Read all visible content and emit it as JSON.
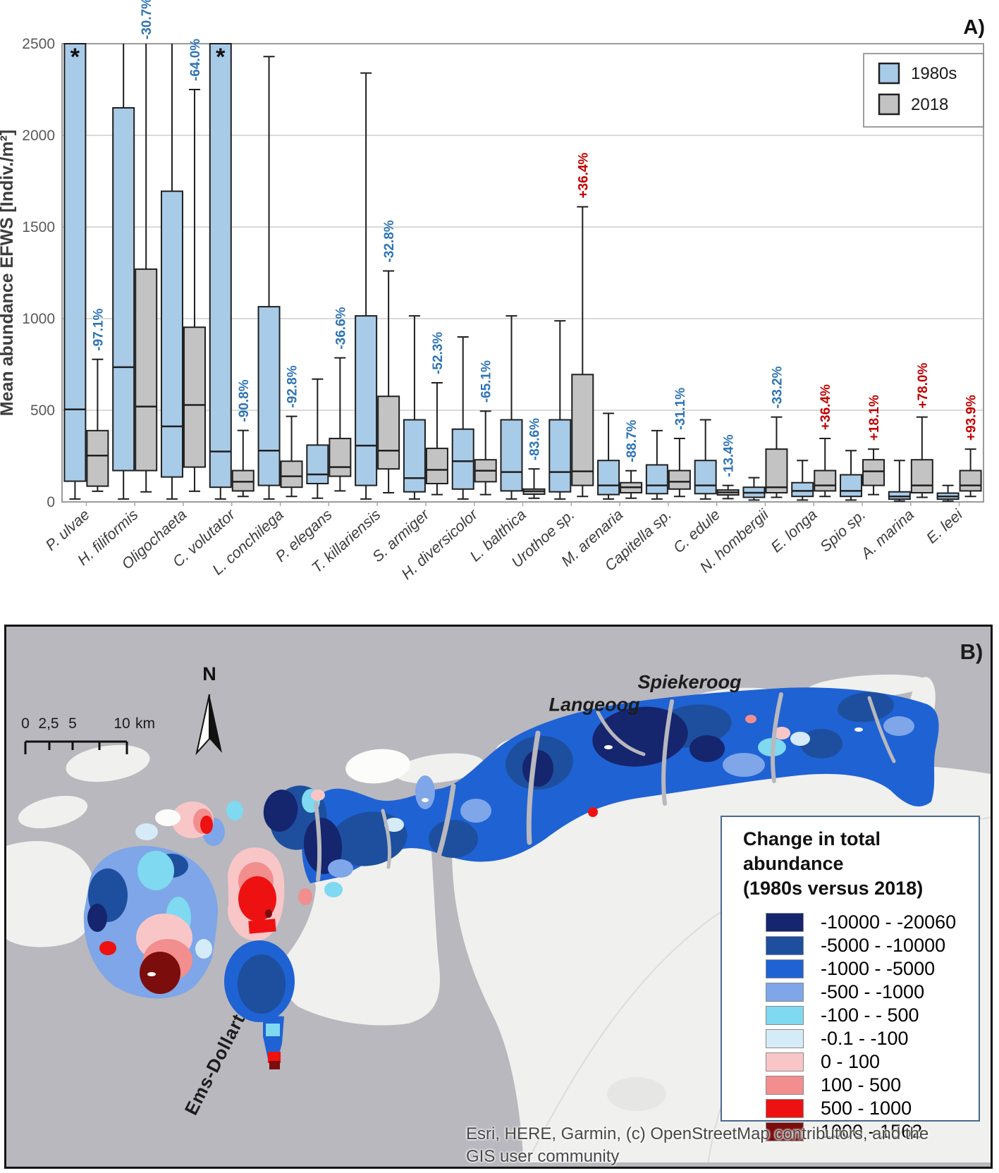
{
  "figure": {
    "panel_a": {
      "label": "A)",
      "y_axis": {
        "title": "Mean abundance EFWS [Indiv./m²]",
        "ticks": [
          "0",
          "500",
          "1000",
          "1500",
          "2000",
          "2500"
        ]
      },
      "legend": {
        "items": [
          {
            "label": "1980s",
            "color": "#a8cbe8"
          },
          {
            "label": "2018",
            "color": "#c3c3c3"
          }
        ]
      },
      "colors": {
        "negative": "#2e74b5",
        "positive": "#c00000",
        "box_stroke": "#1f1f1f",
        "grid": "#dadada",
        "axis_text": "#595959",
        "plot_border": "#9b9b9b"
      },
      "chart_data": {
        "type": "boxplot",
        "ylabel": "Mean abundance EFWS [Indiv./m²]",
        "ylim": [
          0,
          2500
        ],
        "legend_position": "top-right",
        "grid": true,
        "series_names": [
          "1980s",
          "2018"
        ],
        "note": "Boxes give [whisker_low, q1, median, q3, whisker_high] in Indiv./m2; 2500 means clipped at axis top; star marks boxes exceeding axis",
        "species": [
          {
            "name": "P. ulvae",
            "change": "-97.1%",
            "direction": "down",
            "s1980": [
              16,
              113,
              505,
              2500,
              2500
            ],
            "star_1980": true,
            "s2018": [
              58,
              86,
              253,
              389,
              778
            ]
          },
          {
            "name": "H. filiformis",
            "change": "-30.7%",
            "direction": "down",
            "s1980": [
              16,
              171,
              735,
              2150,
              2500
            ],
            "star_1980": false,
            "s2018": [
              55,
              171,
              520,
              1270,
              2500
            ]
          },
          {
            "name": "Oligochaeta",
            "change": "-64.0%",
            "direction": "down",
            "s1980": [
              16,
              136,
              412,
              1695,
              2500
            ],
            "star_1980": false,
            "s2018": [
              58,
              190,
              529,
              953,
              2250
            ]
          },
          {
            "name": "C. volutator",
            "change": "-90.8%",
            "direction": "down",
            "s1980": [
              16,
              80,
              275,
              2500,
              2500
            ],
            "star_1980": true,
            "s2018": [
              30,
              60,
              110,
              171,
              390
            ]
          },
          {
            "name": "L. conchilega",
            "change": "-92.8%",
            "direction": "down",
            "s1980": [
              16,
              90,
              280,
              1065,
              2430
            ],
            "star_1980": false,
            "s2018": [
              30,
              80,
              140,
              222,
              467
            ]
          },
          {
            "name": "P. elegans",
            "change": "-36.6%",
            "direction": "down",
            "s1980": [
              20,
              100,
              150,
              310,
              670
            ],
            "star_1980": false,
            "s2018": [
              60,
              140,
              190,
              346,
              786
            ]
          },
          {
            "name": "T. killariensis",
            "change": "-32.8%",
            "direction": "down",
            "s1980": [
              16,
              90,
              307,
              1015,
              2340
            ],
            "star_1980": false,
            "s2018": [
              50,
              180,
              280,
              576,
              1260
            ]
          },
          {
            "name": "S. armiger",
            "change": "-52.3%",
            "direction": "down",
            "s1980": [
              16,
              55,
              130,
              448,
              1015
            ],
            "star_1980": false,
            "s2018": [
              40,
              100,
              175,
              292,
              650
            ]
          },
          {
            "name": "H. diversicolor",
            "change": "-65.1%",
            "direction": "down",
            "s1980": [
              16,
              70,
              222,
              397,
              900
            ],
            "star_1980": false,
            "s2018": [
              40,
              110,
              170,
              230,
              495
            ]
          },
          {
            "name": "L. balthica",
            "change": "-83.6%",
            "direction": "down",
            "s1980": [
              16,
              60,
              163,
              448,
              1015
            ],
            "star_1980": false,
            "s2018": [
              20,
              42,
              58,
              70,
              180
            ]
          },
          {
            "name": "Urothoe sp.",
            "change": "+36.4%",
            "direction": "up",
            "s1980": [
              16,
              55,
              163,
              448,
              988
            ],
            "star_1980": false,
            "s2018": [
              30,
              90,
              167,
              695,
              1610
            ]
          },
          {
            "name": "M. arenaria",
            "change": "-88.7%",
            "direction": "down",
            "s1980": [
              16,
              40,
              90,
              226,
              483
            ],
            "star_1980": false,
            "s2018": [
              20,
              50,
              80,
              105,
              170
            ]
          },
          {
            "name": "Capitella sp.",
            "change": "-31.1%",
            "direction": "down",
            "s1980": [
              16,
              45,
              90,
              202,
              389
            ],
            "star_1980": false,
            "s2018": [
              30,
              70,
              110,
              171,
              346
            ]
          },
          {
            "name": "C. edule",
            "change": "-13.4%",
            "direction": "down",
            "s1980": [
              16,
              45,
              90,
              226,
              448
            ],
            "star_1980": false,
            "s2018": [
              18,
              38,
              52,
              65,
              90
            ]
          },
          {
            "name": "N. hombergii",
            "change": "-33.2%",
            "direction": "down",
            "s1980": [
              10,
              25,
              50,
              80,
              132
            ],
            "star_1980": false,
            "s2018": [
              25,
              50,
              80,
              288,
              463
            ]
          },
          {
            "name": "E. longa",
            "change": "+36.4%",
            "direction": "up",
            "s1980": [
              10,
              30,
              60,
              105,
              226
            ],
            "star_1980": false,
            "s2018": [
              30,
              60,
              90,
              171,
              346
            ]
          },
          {
            "name": "Spio sp.",
            "change": "+18.1%",
            "direction": "up",
            "s1980": [
              10,
              30,
              60,
              148,
              280
            ],
            "star_1980": false,
            "s2018": [
              40,
              90,
              167,
              230,
              288
            ]
          },
          {
            "name": "A. marina",
            "change": "+78.0%",
            "direction": "up",
            "s1980": [
              5,
              15,
              30,
              55,
              226
            ],
            "star_1980": false,
            "s2018": [
              25,
              50,
              90,
              230,
              463
            ]
          },
          {
            "name": "E. leei",
            "change": "+93.9%",
            "direction": "up",
            "s1980": [
              5,
              15,
              30,
              48,
              90
            ],
            "star_1980": false,
            "s2018": [
              30,
              60,
              90,
              171,
              288
            ]
          }
        ]
      }
    },
    "panel_b": {
      "label": "B)",
      "north_label": "N",
      "scale_bar": {
        "labels": [
          "0",
          "2,5",
          "5",
          "10"
        ],
        "unit": "km"
      },
      "places": {
        "island_west": "Langeoog",
        "island_east": "Spiekeroog",
        "estuary": "Ems-Dollart"
      },
      "legend": {
        "title_line1": "Change in total abundance",
        "title_line2": "(1980s versus 2018)",
        "entries": [
          {
            "range": "-10000 - -20060",
            "color": "#15256e"
          },
          {
            "range": "-5000 - -10000",
            "color": "#1d4f9e"
          },
          {
            "range": "-1000 - -5000",
            "color": "#1f62d4"
          },
          {
            "range": "-500 - -1000",
            "color": "#7ea6e8"
          },
          {
            "range": "-100 - - 500",
            "color": "#7fd9f0"
          },
          {
            "range": "-0.1 - -100",
            "color": "#d6ebf8"
          },
          {
            "range": "0 - 100",
            "color": "#f9c6c8"
          },
          {
            "range": "100 - 500",
            "color": "#f28e8e"
          },
          {
            "range": "500 - 1000",
            "color": "#ee1111"
          },
          {
            "range": "1000 - 1562",
            "color": "#7c0d0d"
          }
        ]
      },
      "map_colors": {
        "water": "#b8b8be",
        "land": "#f0f0ee",
        "land_bright": "#fcfcfa",
        "boundary": "#dcdcda"
      },
      "attribution": {
        "line1": "Esri, HERE, Garmin, (c) OpenStreetMap contributors, and the",
        "line2": "GIS user community"
      }
    }
  }
}
